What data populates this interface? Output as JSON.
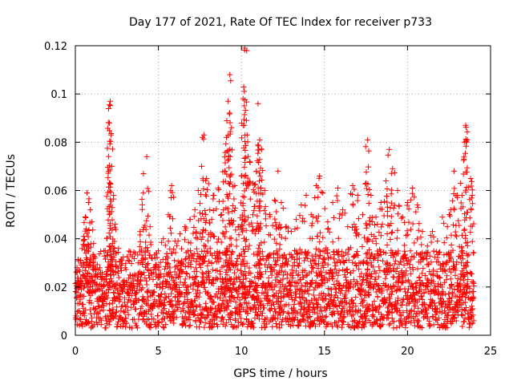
{
  "chart_data": {
    "type": "scatter",
    "title": "Day 177 of 2021, Rate Of TEC Index for receiver p733",
    "xlabel": "GPS time / hours",
    "ylabel": "ROTI / TECUs",
    "xlim": [
      0,
      25
    ],
    "ylim": [
      0,
      0.12
    ],
    "x_ticks": [
      "0",
      "5",
      "10",
      "15",
      "20",
      "25"
    ],
    "y_ticks": [
      "0",
      "0.02",
      "0.04",
      "0.06",
      "0.08",
      "0.1",
      "0.12"
    ],
    "grid": true,
    "legend": "none",
    "marker": "plus",
    "color": "#ff0000",
    "series": [
      {
        "points": [
          [
            0.1,
            0.028
          ],
          [
            0.2,
            0.022
          ],
          [
            0.3,
            0.031
          ],
          [
            0.4,
            0.036
          ],
          [
            0.5,
            0.041
          ],
          [
            0.6,
            0.049
          ],
          [
            0.7,
            0.059
          ],
          [
            0.8,
            0.055
          ],
          [
            0.9,
            0.052
          ],
          [
            1.0,
            0.047
          ],
          [
            1.1,
            0.038
          ],
          [
            1.2,
            0.032
          ],
          [
            1.4,
            0.027
          ],
          [
            1.6,
            0.024
          ],
          [
            1.8,
            0.035
          ],
          [
            2.0,
            0.068
          ],
          [
            2.05,
            0.088
          ],
          [
            2.1,
            0.097
          ],
          [
            2.15,
            0.083
          ],
          [
            2.2,
            0.07
          ],
          [
            2.3,
            0.058
          ],
          [
            2.4,
            0.046
          ],
          [
            2.6,
            0.036
          ],
          [
            2.8,
            0.031
          ],
          [
            3.0,
            0.028
          ],
          [
            3.3,
            0.025
          ],
          [
            3.6,
            0.034
          ],
          [
            3.9,
            0.043
          ],
          [
            4.1,
            0.067
          ],
          [
            4.3,
            0.074
          ],
          [
            4.5,
            0.045
          ],
          [
            4.8,
            0.032
          ],
          [
            5.0,
            0.035
          ],
          [
            5.3,
            0.04
          ],
          [
            5.6,
            0.05
          ],
          [
            5.8,
            0.062
          ],
          [
            6.0,
            0.039
          ],
          [
            6.3,
            0.042
          ],
          [
            6.6,
            0.045
          ],
          [
            6.9,
            0.048
          ],
          [
            7.2,
            0.052
          ],
          [
            7.4,
            0.06
          ],
          [
            7.6,
            0.07
          ],
          [
            7.75,
            0.083
          ],
          [
            7.9,
            0.065
          ],
          [
            8.1,
            0.052
          ],
          [
            8.3,
            0.058
          ],
          [
            8.6,
            0.061
          ],
          [
            8.8,
            0.05
          ],
          [
            9.0,
            0.068
          ],
          [
            9.1,
            0.082
          ],
          [
            9.2,
            0.097
          ],
          [
            9.3,
            0.108
          ],
          [
            9.4,
            0.086
          ],
          [
            9.6,
            0.062
          ],
          [
            9.8,
            0.045
          ],
          [
            10.0,
            0.066
          ],
          [
            10.1,
            0.098
          ],
          [
            10.2,
            0.119
          ],
          [
            10.3,
            0.089
          ],
          [
            10.5,
            0.072
          ],
          [
            10.7,
            0.063
          ],
          [
            10.9,
            0.068
          ],
          [
            11.0,
            0.096
          ],
          [
            11.1,
            0.081
          ],
          [
            11.2,
            0.077
          ],
          [
            11.4,
            0.06
          ],
          [
            11.7,
            0.05
          ],
          [
            12.0,
            0.056
          ],
          [
            12.2,
            0.068
          ],
          [
            12.4,
            0.055
          ],
          [
            12.7,
            0.045
          ],
          [
            13.0,
            0.043
          ],
          [
            13.3,
            0.048
          ],
          [
            13.6,
            0.054
          ],
          [
            13.9,
            0.058
          ],
          [
            14.2,
            0.05
          ],
          [
            14.5,
            0.062
          ],
          [
            14.7,
            0.066
          ],
          [
            14.9,
            0.059
          ],
          [
            15.2,
            0.047
          ],
          [
            15.5,
            0.055
          ],
          [
            15.8,
            0.061
          ],
          [
            16.1,
            0.052
          ],
          [
            16.4,
            0.045
          ],
          [
            16.7,
            0.062
          ],
          [
            17.0,
            0.058
          ],
          [
            17.3,
            0.05
          ],
          [
            17.5,
            0.063
          ],
          [
            17.6,
            0.081
          ],
          [
            17.8,
            0.058
          ],
          [
            18.1,
            0.049
          ],
          [
            18.4,
            0.055
          ],
          [
            18.7,
            0.064
          ],
          [
            18.9,
            0.077
          ],
          [
            19.1,
            0.069
          ],
          [
            19.4,
            0.06
          ],
          [
            19.7,
            0.049
          ],
          [
            20.0,
            0.055
          ],
          [
            20.3,
            0.061
          ],
          [
            20.6,
            0.054
          ],
          [
            20.9,
            0.043
          ],
          [
            21.2,
            0.037
          ],
          [
            21.5,
            0.043
          ],
          [
            21.8,
            0.039
          ],
          [
            22.1,
            0.049
          ],
          [
            22.4,
            0.045
          ],
          [
            22.6,
            0.052
          ],
          [
            22.8,
            0.068
          ],
          [
            23.0,
            0.058
          ],
          [
            23.2,
            0.063
          ],
          [
            23.4,
            0.073
          ],
          [
            23.5,
            0.087
          ],
          [
            23.6,
            0.081
          ],
          [
            23.8,
            0.065
          ],
          [
            23.9,
            0.058
          ]
        ]
      }
    ],
    "baseline_band": {
      "x_range": [
        0,
        24
      ],
      "typical_y_range": [
        0.003,
        0.022
      ],
      "upper_envelope_y": [
        0.03,
        0.035
      ]
    }
  }
}
